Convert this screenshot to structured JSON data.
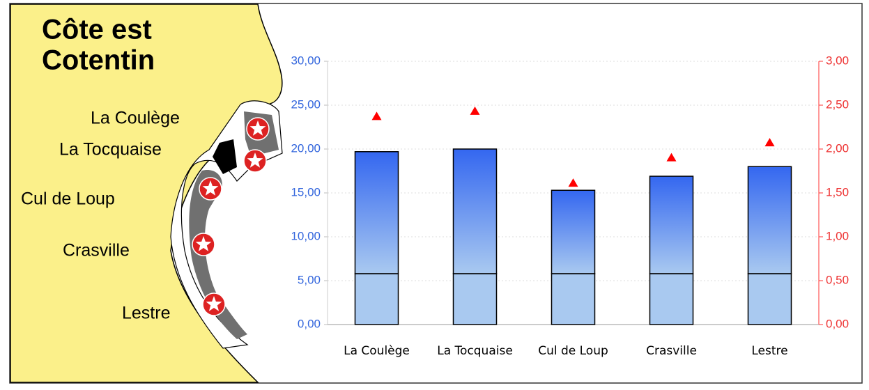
{
  "map": {
    "title": [
      "Côte est",
      "Cotentin"
    ],
    "places": [
      "La Coulège",
      "La Tocquaise",
      "Cul de Loup",
      "Crasville",
      "Lestre"
    ]
  },
  "chart_data": {
    "type": "bar",
    "stacked": true,
    "categories": [
      "La Coulège",
      "La Tocquaise",
      "Cul de Loup",
      "Crasville",
      "Lestre"
    ],
    "series": [
      {
        "color": "#a9c9f0",
        "values": [
          5.8,
          5.8,
          5.8,
          5.8,
          5.8
        ]
      },
      {
        "color": "#3467f0",
        "values": [
          13.9,
          14.2,
          9.5,
          11.1,
          12.2
        ]
      },
      {
        "color": "#ff0000",
        "axis": "y2",
        "type": "scatter",
        "values": [
          2.37,
          2.43,
          1.61,
          1.9,
          2.07
        ]
      }
    ],
    "ylim": [
      0,
      30
    ],
    "yticks": [
      {
        "value": 0,
        "label": "0,00"
      },
      {
        "value": 5,
        "label": "5,00"
      },
      {
        "value": 10,
        "label": "10,00"
      },
      {
        "value": 15,
        "label": "15,00"
      },
      {
        "value": 20,
        "label": "20,00"
      },
      {
        "value": 25,
        "label": "25,00"
      },
      {
        "value": 30,
        "label": "30,00"
      }
    ],
    "y2lim": [
      0,
      3
    ],
    "y2ticks": [
      {
        "value": 0,
        "label": "0,00"
      },
      {
        "value": 0.5,
        "label": "0,50"
      },
      {
        "value": 1,
        "label": "1,00"
      },
      {
        "value": 1.5,
        "label": "1,50"
      },
      {
        "value": 2,
        "label": "2,00"
      },
      {
        "value": 2.5,
        "label": "2,50"
      },
      {
        "value": 3,
        "label": "3,00"
      }
    ],
    "grid": true
  }
}
